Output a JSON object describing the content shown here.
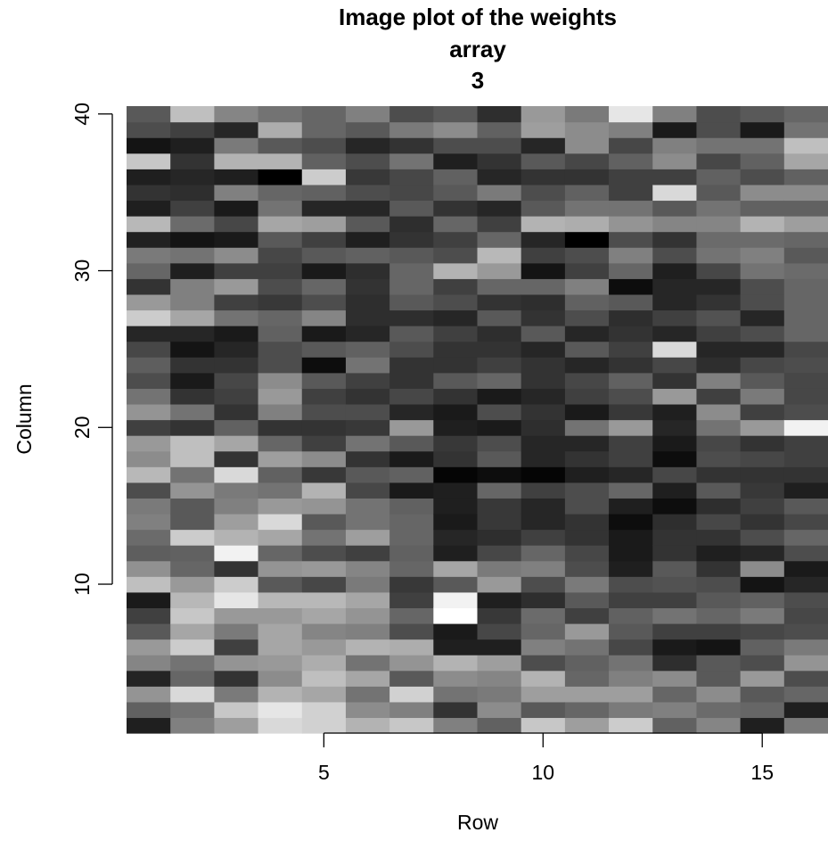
{
  "chart_data": {
    "type": "heatmap",
    "title_lines": [
      "Image plot of the weights",
      "array",
      "3"
    ],
    "xlabel": "Row",
    "ylabel": "Column",
    "x_ticks": [
      5,
      10,
      15
    ],
    "y_ticks": [
      10,
      20,
      30,
      40
    ],
    "xlim": [
      0.5,
      16.5
    ],
    "ylim": [
      0.5,
      40.5
    ],
    "rows": 16,
    "cols": 40,
    "color_scale": "grayscale",
    "values_by_row": [
      [
        0.12,
        0.38,
        0.58,
        0.14,
        0.52,
        0.6,
        0.35,
        0.25,
        0.1,
        0.75,
        0.57,
        0.37,
        0.42,
        0.5,
        0.48,
        0.3,
        0.72,
        0.55,
        0.6,
        0.25,
        0.58,
        0.45,
        0.3,
        0.37,
        0.28,
        0.15,
        0.8,
        0.6,
        0.2,
        0.4,
        0.48,
        0.13,
        0.72,
        0.12,
        0.2,
        0.12,
        0.78,
        0.08,
        0.3,
        0.35
      ],
      [
        0.5,
        0.45,
        0.85,
        0.4,
        0.45,
        0.8,
        0.65,
        0.78,
        0.72,
        0.6,
        0.4,
        0.38,
        0.8,
        0.35,
        0.35,
        0.58,
        0.45,
        0.75,
        0.75,
        0.2,
        0.45,
        0.2,
        0.1,
        0.2,
        0.08,
        0.15,
        0.65,
        0.5,
        0.5,
        0.12,
        0.45,
        0.08,
        0.42,
        0.25,
        0.18,
        0.15,
        0.2,
        0.12,
        0.25,
        0.75
      ],
      [
        0.62,
        0.78,
        0.48,
        0.2,
        0.58,
        0.25,
        0.48,
        0.6,
        0.9,
        0.8,
        0.2,
        0.95,
        0.7,
        0.62,
        0.5,
        0.48,
        0.85,
        0.2,
        0.65,
        0.38,
        0.2,
        0.25,
        0.28,
        0.2,
        0.15,
        0.1,
        0.45,
        0.25,
        0.6,
        0.25,
        0.55,
        0.1,
        0.28,
        0.1,
        0.5,
        0.12,
        0.7,
        0.48,
        0.15,
        0.52
      ],
      [
        0.85,
        0.9,
        0.7,
        0.55,
        0.6,
        0.65,
        0.65,
        0.6,
        0.72,
        0.35,
        0.58,
        0.4,
        0.65,
        0.85,
        0.6,
        0.45,
        0.38,
        0.62,
        0.4,
        0.2,
        0.5,
        0.6,
        0.55,
        0.3,
        0.3,
        0.38,
        0.4,
        0.22,
        0.3,
        0.25,
        0.28,
        0.35,
        0.65,
        0.45,
        0.4,
        0.0,
        0.7,
        0.35,
        0.68,
        0.45
      ],
      [
        0.82,
        0.82,
        0.65,
        0.75,
        0.68,
        0.6,
        0.52,
        0.65,
        0.72,
        0.28,
        0.6,
        0.3,
        0.45,
        0.35,
        0.58,
        0.7,
        0.22,
        0.55,
        0.25,
        0.2,
        0.3,
        0.25,
        0.35,
        0.05,
        0.35,
        0.1,
        0.52,
        0.3,
        0.4,
        0.1,
        0.35,
        0.25,
        0.62,
        0.15,
        0.38,
        0.8,
        0.38,
        0.3,
        0.4,
        0.4
      ],
      [
        0.7,
        0.55,
        0.45,
        0.65,
        0.45,
        0.7,
        0.5,
        0.58,
        0.65,
        0.48,
        0.52,
        0.25,
        0.62,
        0.45,
        0.45,
        0.28,
        0.35,
        0.2,
        0.45,
        0.22,
        0.3,
        0.2,
        0.25,
        0.45,
        0.38,
        0.15,
        0.18,
        0.18,
        0.2,
        0.18,
        0.38,
        0.12,
        0.35,
        0.15,
        0.3,
        0.22,
        0.3,
        0.15,
        0.35,
        0.5
      ],
      [
        0.78,
        0.5,
        0.82,
        0.35,
        0.58,
        0.68,
        0.3,
        0.4,
        0.25,
        0.22,
        0.4,
        0.38,
        0.4,
        0.4,
        0.38,
        0.1,
        0.38,
        0.1,
        0.35,
        0.6,
        0.15,
        0.28,
        0.2,
        0.2,
        0.3,
        0.35,
        0.18,
        0.35,
        0.4,
        0.4,
        0.35,
        0.2,
        0.18,
        0.35,
        0.28,
        0.28,
        0.45,
        0.2,
        0.48,
        0.3
      ],
      [
        0.5,
        0.2,
        0.45,
        0.55,
        0.7,
        0.12,
        0.1,
        1.0,
        0.95,
        0.35,
        0.65,
        0.12,
        0.15,
        0.1,
        0.12,
        0.12,
        0.02,
        0.2,
        0.22,
        0.12,
        0.1,
        0.2,
        0.35,
        0.2,
        0.2,
        0.25,
        0.15,
        0.3,
        0.25,
        0.7,
        0.3,
        0.25,
        0.4,
        0.2,
        0.35,
        0.38,
        0.12,
        0.3,
        0.55,
        0.35
      ],
      [
        0.38,
        0.55,
        0.48,
        0.52,
        0.62,
        0.12,
        0.28,
        0.22,
        0.12,
        0.6,
        0.48,
        0.28,
        0.18,
        0.22,
        0.22,
        0.4,
        0.05,
        0.35,
        0.3,
        0.1,
        0.3,
        0.1,
        0.4,
        0.25,
        0.2,
        0.18,
        0.35,
        0.2,
        0.4,
        0.6,
        0.72,
        0.4,
        0.25,
        0.15,
        0.48,
        0.15,
        0.2,
        0.3,
        0.38,
        0.18
      ],
      [
        0.78,
        0.35,
        0.62,
        0.7,
        0.3,
        0.5,
        0.4,
        0.42,
        0.18,
        0.3,
        0.5,
        0.4,
        0.25,
        0.15,
        0.15,
        0.25,
        0.02,
        0.15,
        0.15,
        0.18,
        0.2,
        0.15,
        0.2,
        0.2,
        0.15,
        0.35,
        0.2,
        0.18,
        0.4,
        0.08,
        0.25,
        0.15,
        0.7,
        0.35,
        0.3,
        0.2,
        0.35,
        0.15,
        0.62,
        0.6
      ],
      [
        0.62,
        0.4,
        0.62,
        0.4,
        0.38,
        0.45,
        0.6,
        0.25,
        0.35,
        0.48,
        0.3,
        0.28,
        0.2,
        0.2,
        0.3,
        0.3,
        0.12,
        0.2,
        0.15,
        0.45,
        0.1,
        0.25,
        0.28,
        0.15,
        0.35,
        0.15,
        0.3,
        0.38,
        0.5,
        0.25,
        0.3,
        0.0,
        0.68,
        0.45,
        0.38,
        0.2,
        0.28,
        0.55,
        0.55,
        0.48
      ],
      [
        0.8,
        0.48,
        0.62,
        0.5,
        0.45,
        0.28,
        0.35,
        0.38,
        0.25,
        0.3,
        0.12,
        0.1,
        0.1,
        0.05,
        0.12,
        0.4,
        0.15,
        0.25,
        0.25,
        0.6,
        0.22,
        0.3,
        0.38,
        0.2,
        0.25,
        0.2,
        0.18,
        0.35,
        0.05,
        0.4,
        0.5,
        0.3,
        0.58,
        0.45,
        0.25,
        0.25,
        0.38,
        0.28,
        0.5,
        0.9
      ],
      [
        0.38,
        0.5,
        0.4,
        0.55,
        0.18,
        0.1,
        0.25,
        0.45,
        0.25,
        0.32,
        0.35,
        0.2,
        0.2,
        0.18,
        0.05,
        0.12,
        0.28,
        0.05,
        0.1,
        0.15,
        0.12,
        0.6,
        0.2,
        0.28,
        0.85,
        0.15,
        0.25,
        0.15,
        0.15,
        0.12,
        0.3,
        0.2,
        0.52,
        0.35,
        0.85,
        0.25,
        0.55,
        0.5,
        0.1,
        0.5
      ],
      [
        0.52,
        0.42,
        0.55,
        0.35,
        0.35,
        0.08,
        0.25,
        0.4,
        0.35,
        0.3,
        0.2,
        0.12,
        0.2,
        0.28,
        0.18,
        0.35,
        0.2,
        0.3,
        0.28,
        0.45,
        0.55,
        0.25,
        0.5,
        0.18,
        0.15,
        0.25,
        0.32,
        0.2,
        0.15,
        0.28,
        0.45,
        0.42,
        0.52,
        0.45,
        0.35,
        0.38,
        0.28,
        0.45,
        0.3,
        0.3
      ],
      [
        0.12,
        0.4,
        0.35,
        0.6,
        0.3,
        0.38,
        0.28,
        0.48,
        0.38,
        0.08,
        0.55,
        0.15,
        0.3,
        0.2,
        0.25,
        0.22,
        0.2,
        0.28,
        0.2,
        0.6,
        0.25,
        0.48,
        0.35,
        0.28,
        0.15,
        0.3,
        0.15,
        0.3,
        0.3,
        0.45,
        0.5,
        0.42,
        0.7,
        0.38,
        0.55,
        0.3,
        0.38,
        0.45,
        0.1,
        0.35
      ],
      [
        0.48,
        0.12,
        0.4,
        0.3,
        0.58,
        0.48,
        0.3,
        0.28,
        0.3,
        0.15,
        0.1,
        0.3,
        0.4,
        0.28,
        0.35,
        0.12,
        0.2,
        0.25,
        0.25,
        0.95,
        0.3,
        0.28,
        0.28,
        0.3,
        0.28,
        0.4,
        0.4,
        0.4,
        0.4,
        0.42,
        0.35,
        0.4,
        0.62,
        0.38,
        0.55,
        0.38,
        0.65,
        0.75,
        0.45,
        0.4
      ]
    ]
  }
}
